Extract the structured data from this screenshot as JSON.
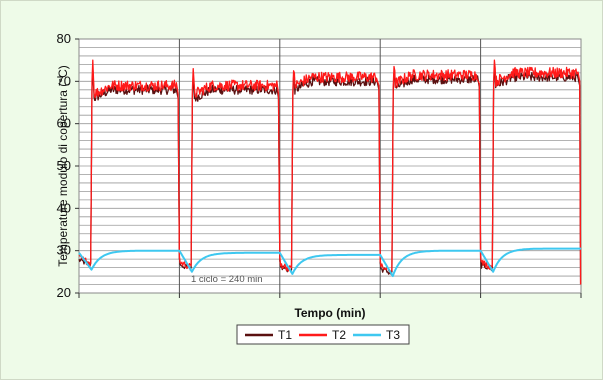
{
  "chart_data": {
    "type": "line",
    "ylabel": "Temperature modulo di copertura (°C)",
    "xlabel": "Tempo (min)",
    "ylim": [
      20,
      80
    ],
    "yticks": [
      20,
      30,
      40,
      50,
      60,
      70,
      80
    ],
    "ytick_labels": [
      "20",
      "30",
      "40",
      "50",
      "60",
      "70",
      "80"
    ],
    "grid": "horizontal every 2 °C, vertical at each cycle boundary",
    "cycles": 5,
    "cycle_minutes": 240,
    "annotation": "1 ciclo = 240 min",
    "legend_position": "bottom-center",
    "series": [
      {
        "name": "T1",
        "color": "#5a1010",
        "per_cycle": [
          {
            "low": 27,
            "peak": 73,
            "plateau": 68
          },
          {
            "low": 26,
            "peak": 71,
            "plateau": 68
          },
          {
            "low": 25.5,
            "peak": 71,
            "plateau": 70
          },
          {
            "low": 25,
            "peak": 72,
            "plateau": 70.5
          },
          {
            "low": 26,
            "peak": 73,
            "plateau": 71
          }
        ]
      },
      {
        "name": "T2",
        "color": "#ff1a1a",
        "per_cycle": [
          {
            "low": 27.5,
            "peak": 75,
            "plateau": 69
          },
          {
            "low": 26.5,
            "peak": 73,
            "plateau": 69
          },
          {
            "low": 26,
            "peak": 72.5,
            "plateau": 71
          },
          {
            "low": 25.5,
            "peak": 73.5,
            "plateau": 71.5
          },
          {
            "low": 26.5,
            "peak": 75,
            "plateau": 72
          }
        ]
      },
      {
        "name": "T3",
        "color": "#3ec8f0",
        "per_cycle": [
          {
            "low": 25.5,
            "high": 30
          },
          {
            "low": 25,
            "high": 29.5
          },
          {
            "low": 24.5,
            "high": 29
          },
          {
            "low": 24,
            "high": 30
          },
          {
            "low": 25,
            "high": 30.5
          }
        ]
      }
    ]
  }
}
